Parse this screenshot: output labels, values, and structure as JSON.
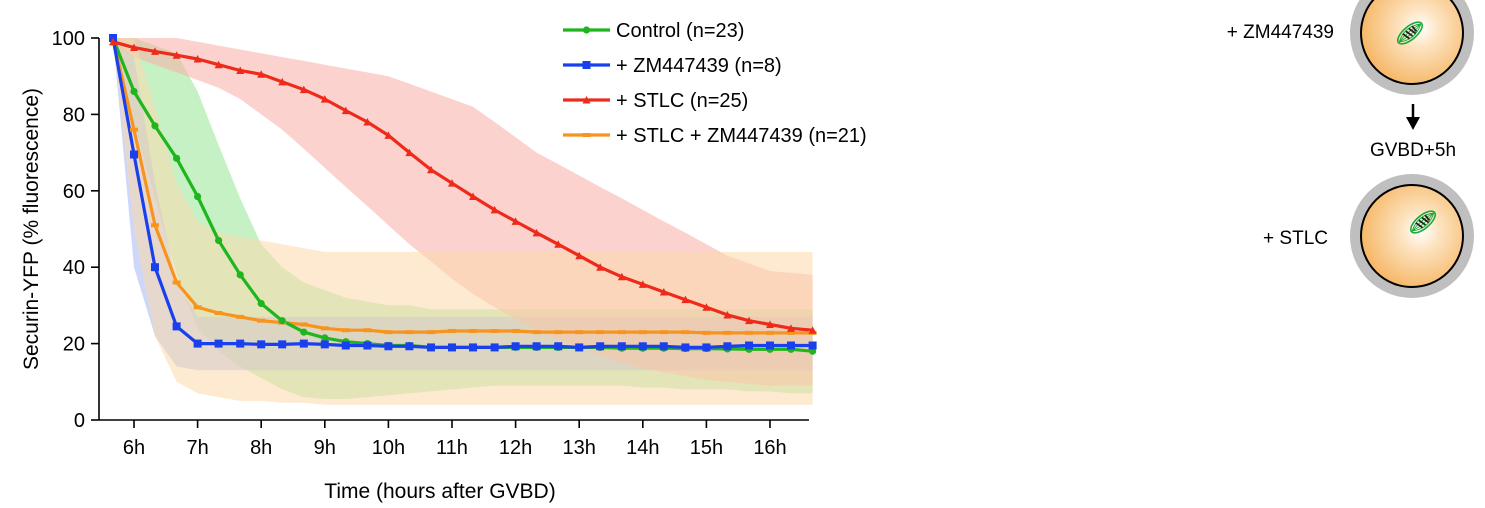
{
  "chart_data": {
    "type": "line",
    "xlabel": "Time (hours after GVBD)",
    "ylabel": "Securin-YFP (% fluorescence)",
    "ylim": [
      0,
      100
    ],
    "yticks": [
      0,
      20,
      40,
      60,
      80,
      100
    ],
    "xlim": [
      5.55,
      16.75
    ],
    "xticks": [
      6,
      7,
      8,
      9,
      10,
      11,
      12,
      13,
      14,
      15,
      16
    ],
    "xtick_labels": [
      "6h",
      "7h",
      "8h",
      "9h",
      "10h",
      "11h",
      "12h",
      "13h",
      "14h",
      "15h",
      "16h"
    ],
    "grid": false,
    "legend_position": "top-center",
    "shaded_band": "variability range around each mean curve",
    "series": [
      {
        "name": "Control (n=23)",
        "color": "#1fb51f",
        "band_color": "#95e695",
        "marker": "circle",
        "x": [
          5.67,
          6.0,
          6.33,
          6.67,
          7.0,
          7.33,
          7.67,
          8.0,
          8.33,
          8.67,
          9.0,
          9.33,
          9.67,
          10.0,
          10.33,
          10.67,
          11.0,
          11.33,
          11.67,
          12.0,
          12.33,
          12.67,
          13.0,
          13.33,
          13.67,
          14.0,
          14.33,
          14.67,
          15.0,
          15.33,
          15.67,
          16.0,
          16.33,
          16.67
        ],
        "y": [
          100,
          86,
          77,
          68.5,
          58.5,
          47,
          38,
          30.5,
          26,
          23,
          21.5,
          20.5,
          20,
          19.5,
          19.5,
          19,
          19,
          19,
          19,
          19,
          19,
          19,
          19,
          19,
          18.8,
          18.8,
          18.8,
          18.7,
          18.7,
          18.6,
          18.5,
          18.5,
          18.5,
          18
        ],
        "lower": [
          100,
          78,
          58,
          38,
          24,
          18,
          14,
          11,
          8,
          6,
          5.5,
          5.5,
          6,
          6.5,
          7,
          7.5,
          8,
          8.5,
          9,
          9,
          9,
          9,
          9,
          9,
          9,
          8.5,
          8.5,
          8,
          8,
          8,
          7.5,
          7.5,
          7,
          7
        ],
        "upper": [
          100,
          100,
          98,
          96,
          86,
          72,
          58,
          46,
          40,
          36,
          34,
          32,
          31,
          30,
          30,
          29,
          29,
          29,
          29,
          29,
          29,
          29,
          29,
          29,
          29,
          29,
          29,
          29,
          29,
          29,
          29,
          29,
          29,
          29
        ]
      },
      {
        "name": "+ ZM447439 (n=8)",
        "color": "#1a40ee",
        "band_color": "#a7b6f2",
        "marker": "square",
        "x": [
          5.67,
          6.0,
          6.33,
          6.67,
          7.0,
          7.33,
          7.67,
          8.0,
          8.33,
          8.67,
          9.0,
          9.33,
          9.67,
          10.0,
          10.33,
          10.67,
          11.0,
          11.33,
          11.67,
          12.0,
          12.33,
          12.67,
          13.0,
          13.33,
          13.67,
          14.0,
          14.33,
          14.67,
          15.0,
          15.33,
          15.67,
          16.0,
          16.33,
          16.67
        ],
        "y": [
          100,
          69.5,
          40,
          24.5,
          20,
          20,
          20,
          19.8,
          19.8,
          20,
          19.8,
          19.5,
          19.5,
          19.3,
          19.3,
          19,
          19,
          19,
          19,
          19.3,
          19.3,
          19.3,
          19,
          19.3,
          19.3,
          19.3,
          19.3,
          19,
          19,
          19.3,
          19.5,
          19.5,
          19.5,
          19.5
        ],
        "lower": [
          100,
          40,
          22,
          14,
          13,
          13,
          13,
          13,
          13,
          13,
          13,
          13,
          13,
          13,
          13,
          13,
          13,
          13,
          13,
          13,
          13,
          13,
          13,
          13,
          13,
          13,
          13,
          13,
          13,
          13,
          13,
          13,
          13,
          13
        ],
        "upper": [
          100,
          95,
          62,
          36,
          27,
          27,
          27,
          27,
          27,
          27,
          27,
          27,
          27,
          27,
          27,
          27,
          27,
          27,
          27,
          27,
          27,
          27,
          27,
          27,
          27,
          27,
          27,
          27,
          27,
          27,
          27,
          27,
          27,
          27
        ]
      },
      {
        "name": "+ STLC (n=25)",
        "color": "#ee2a1a",
        "band_color": "#f9ada5",
        "marker": "triangle",
        "x": [
          5.67,
          6.0,
          6.33,
          6.67,
          7.0,
          7.33,
          7.67,
          8.0,
          8.33,
          8.67,
          9.0,
          9.33,
          9.67,
          10.0,
          10.33,
          10.67,
          11.0,
          11.33,
          11.67,
          12.0,
          12.33,
          12.67,
          13.0,
          13.33,
          13.67,
          14.0,
          14.33,
          14.67,
          15.0,
          15.33,
          15.67,
          16.0,
          16.33,
          16.67
        ],
        "y": [
          99,
          97.5,
          96.5,
          95.5,
          94.5,
          93,
          91.5,
          90.5,
          88.5,
          86.5,
          84,
          81,
          78,
          74.5,
          70,
          65.5,
          62,
          58.5,
          55,
          52,
          49,
          46,
          43,
          40,
          37.5,
          35.5,
          33.5,
          31.5,
          29.5,
          27.5,
          26,
          25,
          24,
          23.5
        ],
        "lower": [
          98,
          95,
          93,
          91,
          89,
          87,
          84,
          80,
          76,
          71,
          66,
          61,
          56,
          51,
          46,
          41.5,
          37,
          33,
          29.5,
          26.5,
          23.5,
          21,
          19,
          17,
          15,
          13.5,
          12.5,
          11.5,
          10.5,
          10,
          9.5,
          9,
          9,
          9
        ],
        "upper": [
          100,
          100,
          100,
          100,
          99,
          98,
          97,
          96,
          95,
          94,
          93,
          92,
          91,
          90,
          88,
          86,
          84,
          82,
          78,
          74,
          70,
          67,
          64,
          61,
          58,
          55,
          52,
          49,
          46,
          43,
          41,
          39,
          38.5,
          38
        ]
      },
      {
        "name": "+ STLC + ZM447439 (n=21)",
        "color": "#f7941d",
        "band_color": "#fbd8ac",
        "marker": "bar",
        "x": [
          5.67,
          6.0,
          6.33,
          6.67,
          7.0,
          7.33,
          7.67,
          8.0,
          8.33,
          8.67,
          9.0,
          9.33,
          9.67,
          10.0,
          10.33,
          10.67,
          11.0,
          11.33,
          11.67,
          12.0,
          12.33,
          12.67,
          13.0,
          13.33,
          13.67,
          14.0,
          14.33,
          14.67,
          15.0,
          15.33,
          15.67,
          16.0,
          16.33,
          16.67
        ],
        "y": [
          100,
          76,
          51,
          36,
          29.5,
          28,
          27,
          26,
          25.5,
          25,
          24,
          23.5,
          23.5,
          23,
          23,
          23,
          23.3,
          23.3,
          23.3,
          23.3,
          23,
          23,
          23,
          23,
          23,
          23,
          23,
          23,
          22.8,
          22.8,
          22.8,
          22.8,
          22.8,
          22.8
        ],
        "lower": [
          100,
          50,
          22,
          10,
          7,
          6,
          5,
          5,
          4.5,
          4.5,
          4,
          4,
          4,
          4,
          4,
          4,
          4,
          4,
          4,
          4,
          4,
          4,
          4,
          4,
          4,
          4,
          4,
          4,
          4,
          4,
          4,
          4,
          4,
          4
        ],
        "upper": [
          100,
          100,
          82,
          62,
          52,
          49,
          48,
          47,
          46,
          45,
          44,
          44,
          44,
          44,
          44,
          44,
          44,
          44,
          44,
          44,
          44,
          44,
          44,
          44,
          44,
          44,
          44,
          44,
          44,
          44,
          44,
          44,
          44,
          44
        ]
      }
    ]
  },
  "diagram": {
    "top_label": "+ ZM447439",
    "step_label": "GVBD+5h",
    "bottom_label": "+ STLC"
  }
}
